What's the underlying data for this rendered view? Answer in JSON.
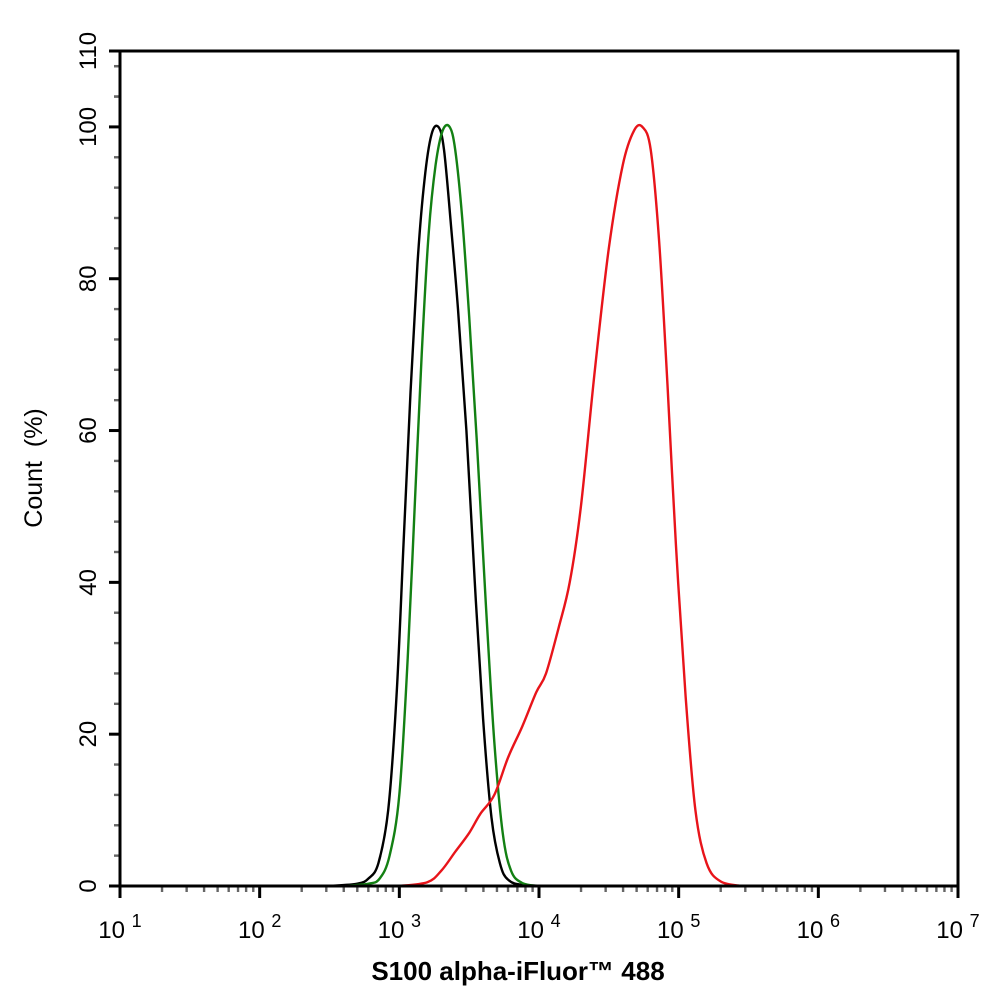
{
  "chart_data": {
    "type": "line",
    "title": "",
    "xlabel": "S100 alpha-iFluor™ 488",
    "ylabel": "Count  (%)",
    "xscale": "log",
    "xlim": [
      10,
      10000000
    ],
    "ylim": [
      0,
      110
    ],
    "x_ticks": [
      {
        "base": "10",
        "exp": "1"
      },
      {
        "base": "10",
        "exp": "2"
      },
      {
        "base": "10",
        "exp": "3"
      },
      {
        "base": "10",
        "exp": "4"
      },
      {
        "base": "10",
        "exp": "5"
      },
      {
        "base": "10",
        "exp": "6"
      },
      {
        "base": "10",
        "exp": "7"
      }
    ],
    "y_ticks": [
      "0",
      "20",
      "40",
      "60",
      "80",
      "100",
      "110"
    ],
    "grid": false,
    "legend": null,
    "series": [
      {
        "name": "black",
        "color": "#000000",
        "points_log10x": [
          [
            2.5,
            0
          ],
          [
            2.7,
            0.3
          ],
          [
            2.78,
            1
          ],
          [
            2.85,
            3
          ],
          [
            2.92,
            10
          ],
          [
            2.98,
            25
          ],
          [
            3.03,
            45
          ],
          [
            3.08,
            65
          ],
          [
            3.13,
            82
          ],
          [
            3.18,
            93
          ],
          [
            3.23,
            99
          ],
          [
            3.28,
            100
          ],
          [
            3.32,
            97
          ],
          [
            3.37,
            87
          ],
          [
            3.42,
            76
          ],
          [
            3.48,
            60
          ],
          [
            3.54,
            40
          ],
          [
            3.6,
            22
          ],
          [
            3.66,
            9
          ],
          [
            3.72,
            3
          ],
          [
            3.78,
            0.8
          ],
          [
            3.9,
            0.1
          ],
          [
            4.2,
            0
          ]
        ]
      },
      {
        "name": "green",
        "color": "#138013",
        "points_log10x": [
          [
            2.6,
            0
          ],
          [
            2.78,
            0.3
          ],
          [
            2.86,
            1
          ],
          [
            2.93,
            4
          ],
          [
            3.0,
            12
          ],
          [
            3.06,
            30
          ],
          [
            3.11,
            50
          ],
          [
            3.16,
            70
          ],
          [
            3.21,
            86
          ],
          [
            3.26,
            95
          ],
          [
            3.31,
            99.5
          ],
          [
            3.36,
            100
          ],
          [
            3.4,
            97
          ],
          [
            3.45,
            88
          ],
          [
            3.5,
            75
          ],
          [
            3.56,
            57
          ],
          [
            3.62,
            37
          ],
          [
            3.68,
            19
          ],
          [
            3.74,
            7
          ],
          [
            3.8,
            2
          ],
          [
            3.88,
            0.4
          ],
          [
            4.0,
            0
          ]
        ]
      },
      {
        "name": "red",
        "color": "#e8141a",
        "points_log10x": [
          [
            3.0,
            0
          ],
          [
            3.2,
            0.5
          ],
          [
            3.3,
            2
          ],
          [
            3.4,
            4.5
          ],
          [
            3.5,
            7
          ],
          [
            3.58,
            9.5
          ],
          [
            3.68,
            12
          ],
          [
            3.78,
            17
          ],
          [
            3.88,
            21
          ],
          [
            3.98,
            25.5
          ],
          [
            4.05,
            28
          ],
          [
            4.14,
            34
          ],
          [
            4.22,
            40
          ],
          [
            4.3,
            50
          ],
          [
            4.4,
            68
          ],
          [
            4.5,
            84
          ],
          [
            4.6,
            95
          ],
          [
            4.68,
            99.5
          ],
          [
            4.74,
            100
          ],
          [
            4.8,
            97
          ],
          [
            4.86,
            85
          ],
          [
            4.92,
            66
          ],
          [
            4.98,
            45
          ],
          [
            5.05,
            25
          ],
          [
            5.12,
            10
          ],
          [
            5.2,
            3
          ],
          [
            5.3,
            0.6
          ],
          [
            5.45,
            0
          ]
        ]
      }
    ]
  }
}
